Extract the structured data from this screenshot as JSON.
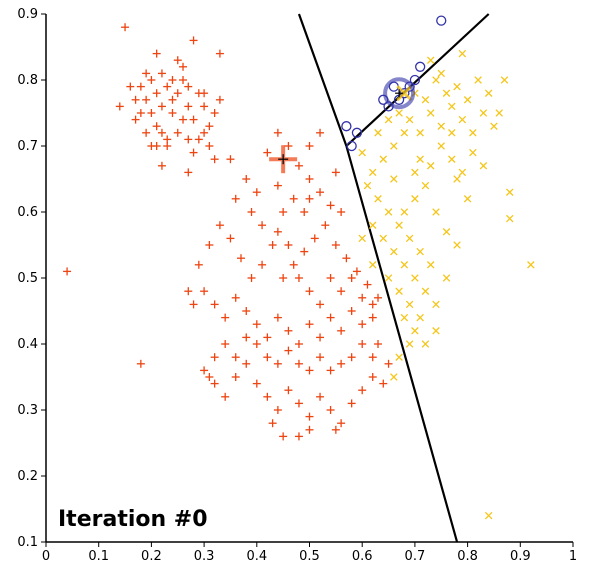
{
  "chart_data": {
    "type": "scatter",
    "title": "",
    "xlabel": "",
    "ylabel": "",
    "annotation": "Iteration #0",
    "xlim": [
      0,
      1
    ],
    "ylim": [
      0.1,
      0.9
    ],
    "x_ticks": [
      "0",
      "0.1",
      "0.2",
      "0.3",
      "0.4",
      "0.5",
      "0.6",
      "0.7",
      "0.8",
      "0.9",
      "1"
    ],
    "y_ticks": [
      "0.1",
      "0.2",
      "0.3",
      "0.4",
      "0.5",
      "0.6",
      "0.7",
      "0.8",
      "0.9"
    ],
    "grid": false,
    "colors": {
      "cluster_red": "#ee4411",
      "cluster_yellow": "#f5c518",
      "cluster_blue": "#3333aa",
      "boundary": "#000000"
    },
    "boundaries": [
      {
        "name": "boundary-red-yellow-lower",
        "points": [
          [
            0.57,
            0.7
          ],
          [
            0.78,
            0.1
          ]
        ]
      },
      {
        "name": "boundary-red-blue",
        "points": [
          [
            0.48,
            0.9
          ],
          [
            0.57,
            0.7
          ]
        ]
      },
      {
        "name": "boundary-blue-yellow",
        "points": [
          [
            0.57,
            0.7
          ],
          [
            0.84,
            0.9
          ]
        ]
      }
    ],
    "series": [
      {
        "name": "cluster-red",
        "marker": "plus",
        "color": "#ee4411",
        "centroid": [
          0.45,
          0.68
        ],
        "points": [
          [
            0.04,
            0.51
          ],
          [
            0.15,
            0.88
          ],
          [
            0.18,
            0.37
          ],
          [
            0.14,
            0.76
          ],
          [
            0.21,
            0.84
          ],
          [
            0.28,
            0.86
          ],
          [
            0.33,
            0.84
          ],
          [
            0.18,
            0.79
          ],
          [
            0.19,
            0.77
          ],
          [
            0.2,
            0.8
          ],
          [
            0.21,
            0.78
          ],
          [
            0.22,
            0.76
          ],
          [
            0.23,
            0.79
          ],
          [
            0.24,
            0.75
          ],
          [
            0.25,
            0.78
          ],
          [
            0.26,
            0.8
          ],
          [
            0.27,
            0.76
          ],
          [
            0.28,
            0.74
          ],
          [
            0.29,
            0.78
          ],
          [
            0.3,
            0.76
          ],
          [
            0.31,
            0.73
          ],
          [
            0.17,
            0.74
          ],
          [
            0.19,
            0.72
          ],
          [
            0.21,
            0.73
          ],
          [
            0.23,
            0.71
          ],
          [
            0.25,
            0.72
          ],
          [
            0.26,
            0.82
          ],
          [
            0.24,
            0.8
          ],
          [
            0.2,
            0.75
          ],
          [
            0.22,
            0.72
          ],
          [
            0.27,
            0.71
          ],
          [
            0.29,
            0.71
          ],
          [
            0.31,
            0.7
          ],
          [
            0.23,
            0.7
          ],
          [
            0.17,
            0.77
          ],
          [
            0.2,
            0.7
          ],
          [
            0.18,
            0.75
          ],
          [
            0.21,
            0.7
          ],
          [
            0.25,
            0.83
          ],
          [
            0.27,
            0.79
          ],
          [
            0.3,
            0.78
          ],
          [
            0.32,
            0.75
          ],
          [
            0.28,
            0.69
          ],
          [
            0.3,
            0.72
          ],
          [
            0.22,
            0.81
          ],
          [
            0.16,
            0.79
          ],
          [
            0.24,
            0.77
          ],
          [
            0.26,
            0.74
          ],
          [
            0.19,
            0.81
          ],
          [
            0.33,
            0.77
          ],
          [
            0.22,
            0.67
          ],
          [
            0.27,
            0.66
          ],
          [
            0.32,
            0.68
          ],
          [
            0.35,
            0.68
          ],
          [
            0.38,
            0.65
          ],
          [
            0.4,
            0.63
          ],
          [
            0.42,
            0.69
          ],
          [
            0.44,
            0.72
          ],
          [
            0.46,
            0.7
          ],
          [
            0.48,
            0.67
          ],
          [
            0.5,
            0.65
          ],
          [
            0.52,
            0.63
          ],
          [
            0.54,
            0.61
          ],
          [
            0.56,
            0.6
          ],
          [
            0.55,
            0.66
          ],
          [
            0.5,
            0.7
          ],
          [
            0.52,
            0.72
          ],
          [
            0.44,
            0.64
          ],
          [
            0.47,
            0.62
          ],
          [
            0.49,
            0.6
          ],
          [
            0.41,
            0.58
          ],
          [
            0.36,
            0.62
          ],
          [
            0.39,
            0.6
          ],
          [
            0.45,
            0.6
          ],
          [
            0.5,
            0.62
          ],
          [
            0.3,
            0.48
          ],
          [
            0.32,
            0.46
          ],
          [
            0.34,
            0.44
          ],
          [
            0.36,
            0.47
          ],
          [
            0.38,
            0.45
          ],
          [
            0.4,
            0.43
          ],
          [
            0.42,
            0.41
          ],
          [
            0.44,
            0.44
          ],
          [
            0.46,
            0.42
          ],
          [
            0.48,
            0.4
          ],
          [
            0.5,
            0.43
          ],
          [
            0.52,
            0.41
          ],
          [
            0.54,
            0.44
          ],
          [
            0.56,
            0.42
          ],
          [
            0.58,
            0.45
          ],
          [
            0.6,
            0.43
          ],
          [
            0.62,
            0.46
          ],
          [
            0.45,
            0.5
          ],
          [
            0.47,
            0.52
          ],
          [
            0.49,
            0.54
          ],
          [
            0.51,
            0.56
          ],
          [
            0.53,
            0.58
          ],
          [
            0.55,
            0.55
          ],
          [
            0.57,
            0.53
          ],
          [
            0.59,
            0.51
          ],
          [
            0.61,
            0.49
          ],
          [
            0.63,
            0.47
          ],
          [
            0.43,
            0.55
          ],
          [
            0.41,
            0.52
          ],
          [
            0.39,
            0.5
          ],
          [
            0.37,
            0.53
          ],
          [
            0.35,
            0.56
          ],
          [
            0.33,
            0.58
          ],
          [
            0.31,
            0.55
          ],
          [
            0.29,
            0.52
          ],
          [
            0.44,
            0.57
          ],
          [
            0.46,
            0.55
          ],
          [
            0.48,
            0.5
          ],
          [
            0.5,
            0.48
          ],
          [
            0.52,
            0.46
          ],
          [
            0.54,
            0.5
          ],
          [
            0.56,
            0.48
          ],
          [
            0.58,
            0.5
          ],
          [
            0.6,
            0.47
          ],
          [
            0.62,
            0.44
          ],
          [
            0.27,
            0.48
          ],
          [
            0.28,
            0.46
          ],
          [
            0.3,
            0.36
          ],
          [
            0.32,
            0.34
          ],
          [
            0.34,
            0.32
          ],
          [
            0.36,
            0.35
          ],
          [
            0.38,
            0.37
          ],
          [
            0.4,
            0.34
          ],
          [
            0.42,
            0.32
          ],
          [
            0.44,
            0.3
          ],
          [
            0.46,
            0.33
          ],
          [
            0.48,
            0.31
          ],
          [
            0.5,
            0.29
          ],
          [
            0.52,
            0.32
          ],
          [
            0.54,
            0.3
          ],
          [
            0.56,
            0.28
          ],
          [
            0.58,
            0.31
          ],
          [
            0.6,
            0.33
          ],
          [
            0.62,
            0.35
          ],
          [
            0.64,
            0.34
          ],
          [
            0.43,
            0.28
          ],
          [
            0.45,
            0.26
          ],
          [
            0.48,
            0.26
          ],
          [
            0.5,
            0.27
          ],
          [
            0.55,
            0.27
          ],
          [
            0.42,
            0.38
          ],
          [
            0.44,
            0.37
          ],
          [
            0.46,
            0.39
          ],
          [
            0.48,
            0.37
          ],
          [
            0.5,
            0.36
          ],
          [
            0.52,
            0.38
          ],
          [
            0.54,
            0.36
          ],
          [
            0.56,
            0.37
          ],
          [
            0.58,
            0.38
          ],
          [
            0.6,
            0.4
          ],
          [
            0.63,
            0.4
          ],
          [
            0.4,
            0.4
          ],
          [
            0.38,
            0.41
          ],
          [
            0.36,
            0.38
          ],
          [
            0.34,
            0.4
          ],
          [
            0.32,
            0.38
          ],
          [
            0.31,
            0.35
          ],
          [
            0.65,
            0.37
          ],
          [
            0.62,
            0.38
          ]
        ]
      },
      {
        "name": "cluster-yellow",
        "marker": "x",
        "color": "#f5c518",
        "centroid": [
          0.68,
          0.78
        ],
        "points": [
          [
            0.69,
            0.74
          ],
          [
            0.71,
            0.72
          ],
          [
            0.73,
            0.75
          ],
          [
            0.75,
            0.73
          ],
          [
            0.77,
            0.76
          ],
          [
            0.79,
            0.74
          ],
          [
            0.81,
            0.72
          ],
          [
            0.83,
            0.75
          ],
          [
            0.85,
            0.73
          ],
          [
            0.7,
            0.78
          ],
          [
            0.72,
            0.77
          ],
          [
            0.74,
            0.8
          ],
          [
            0.76,
            0.78
          ],
          [
            0.78,
            0.79
          ],
          [
            0.8,
            0.77
          ],
          [
            0.82,
            0.8
          ],
          [
            0.84,
            0.78
          ],
          [
            0.71,
            0.68
          ],
          [
            0.73,
            0.67
          ],
          [
            0.75,
            0.7
          ],
          [
            0.77,
            0.68
          ],
          [
            0.79,
            0.66
          ],
          [
            0.81,
            0.69
          ],
          [
            0.83,
            0.67
          ],
          [
            0.66,
            0.7
          ],
          [
            0.68,
            0.72
          ],
          [
            0.64,
            0.68
          ],
          [
            0.62,
            0.66
          ],
          [
            0.6,
            0.69
          ],
          [
            0.63,
            0.72
          ],
          [
            0.65,
            0.74
          ],
          [
            0.67,
            0.75
          ],
          [
            0.79,
            0.84
          ],
          [
            0.87,
            0.8
          ],
          [
            0.86,
            0.75
          ],
          [
            0.75,
            0.81
          ],
          [
            0.73,
            0.83
          ],
          [
            0.77,
            0.72
          ],
          [
            0.7,
            0.66
          ],
          [
            0.72,
            0.64
          ],
          [
            0.61,
            0.64
          ],
          [
            0.63,
            0.62
          ],
          [
            0.65,
            0.6
          ],
          [
            0.67,
            0.58
          ],
          [
            0.69,
            0.56
          ],
          [
            0.71,
            0.54
          ],
          [
            0.73,
            0.52
          ],
          [
            0.64,
            0.56
          ],
          [
            0.66,
            0.54
          ],
          [
            0.68,
            0.52
          ],
          [
            0.7,
            0.5
          ],
          [
            0.72,
            0.48
          ],
          [
            0.74,
            0.46
          ],
          [
            0.65,
            0.5
          ],
          [
            0.67,
            0.48
          ],
          [
            0.69,
            0.46
          ],
          [
            0.71,
            0.44
          ],
          [
            0.62,
            0.58
          ],
          [
            0.6,
            0.56
          ],
          [
            0.62,
            0.52
          ],
          [
            0.68,
            0.44
          ],
          [
            0.7,
            0.42
          ],
          [
            0.72,
            0.4
          ],
          [
            0.74,
            0.42
          ],
          [
            0.76,
            0.5
          ],
          [
            0.78,
            0.55
          ],
          [
            0.8,
            0.62
          ],
          [
            0.74,
            0.6
          ],
          [
            0.88,
            0.63
          ],
          [
            0.88,
            0.59
          ],
          [
            0.92,
            0.52
          ],
          [
            0.67,
            0.38
          ],
          [
            0.66,
            0.35
          ],
          [
            0.69,
            0.4
          ],
          [
            0.84,
            0.14
          ],
          [
            0.76,
            0.57
          ],
          [
            0.78,
            0.65
          ],
          [
            0.7,
            0.62
          ],
          [
            0.66,
            0.65
          ],
          [
            0.68,
            0.6
          ]
        ]
      },
      {
        "name": "cluster-blue",
        "marker": "circle",
        "color": "#3333aa",
        "centroid": [
          0.67,
          0.78
        ],
        "points": [
          [
            0.75,
            0.89
          ],
          [
            0.57,
            0.73
          ],
          [
            0.59,
            0.72
          ],
          [
            0.65,
            0.76
          ],
          [
            0.67,
            0.77
          ],
          [
            0.68,
            0.78
          ],
          [
            0.69,
            0.79
          ],
          [
            0.7,
            0.8
          ],
          [
            0.71,
            0.82
          ],
          [
            0.66,
            0.79
          ],
          [
            0.64,
            0.77
          ],
          [
            0.58,
            0.7
          ]
        ]
      }
    ]
  }
}
